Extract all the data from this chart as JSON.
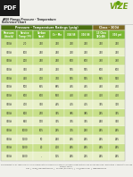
{
  "title_line1": "ANSI Flange Pressure - Temperature",
  "title_line2": "Reference Chart",
  "header_section": "Pressure - Temperature Ratings (psig)",
  "class_label": "Class - 300#",
  "col_headers": [
    "Pressure\n(Steels)",
    "Service\nTemp (°F)",
    "Carbon\nSteel",
    "Cr - Mo",
    "304 SS",
    "316 SS",
    "13 Chro\n13Cr4Ni",
    "316 psi"
  ],
  "rows": [
    [
      "300#",
      "-20",
      "720",
      "720",
      "720",
      "720",
      "720",
      "720"
    ],
    [
      "300#",
      "100",
      "740",
      "740",
      "720",
      "720",
      "720",
      "720"
    ],
    [
      "300#",
      "200",
      "740",
      "740",
      "600",
      "600",
      "750",
      "750"
    ],
    [
      "300#",
      "300",
      "720",
      "720",
      "575",
      "575",
      "600",
      "600"
    ],
    [
      "300#",
      "400",
      "700",
      "730",
      "535",
      "535",
      "565",
      "530"
    ],
    [
      "300#",
      "500",
      "665",
      "685",
      "495",
      "495",
      "490",
      "430"
    ],
    [
      "300#",
      "600",
      "600",
      "650",
      "450",
      "450",
      "420",
      "410"
    ],
    [
      "300#",
      "700",
      "350",
      "445",
      "415",
      "415",
      "345",
      "370"
    ],
    [
      "300#",
      "800",
      "270",
      "395",
      "385",
      "385",
      "295",
      "345"
    ],
    [
      "300#",
      "900",
      "170",
      "355",
      "345",
      "345",
      "260",
      "300"
    ],
    [
      "300#",
      "1000",
      "105",
      "295",
      "325",
      "290",
      "265",
      "265"
    ],
    [
      "300#",
      "1100",
      "50",
      "260",
      "265",
      "265",
      "265",
      "265"
    ],
    [
      "300#",
      "1200",
      "20",
      "200",
      "265",
      "265",
      "265",
      "265"
    ],
    [
      "300#",
      "1500",
      "-",
      "115",
      "265",
      "225",
      "265",
      "265"
    ]
  ],
  "header_bg": "#7ab832",
  "header_text": "#ffffff",
  "section_header_bg": "#5a8a1a",
  "class_header_bg": "#7a6020",
  "body_bg1": "#c8e08a",
  "body_bg2": "#e8f0c8",
  "footer_text": "This document is for reference only and should not be considered as express or implied warranty by Vize or Vize and Vize. Information is subject to change without notice.",
  "footer_line2": "Vize   |   sales@vizeindustries.com   |   Toll Free: (toll free #)   |   info@vizeinv.com   |   www.vizeinv.com",
  "logo_text": "VIZE",
  "pdf_text": "PDF",
  "pdf_bg": "#1a1a1a",
  "background": "#f0f0eb",
  "table_border": "#aaaaaa",
  "section_divider_bg": "#4a7010",
  "vize_green": "#6a9a10"
}
